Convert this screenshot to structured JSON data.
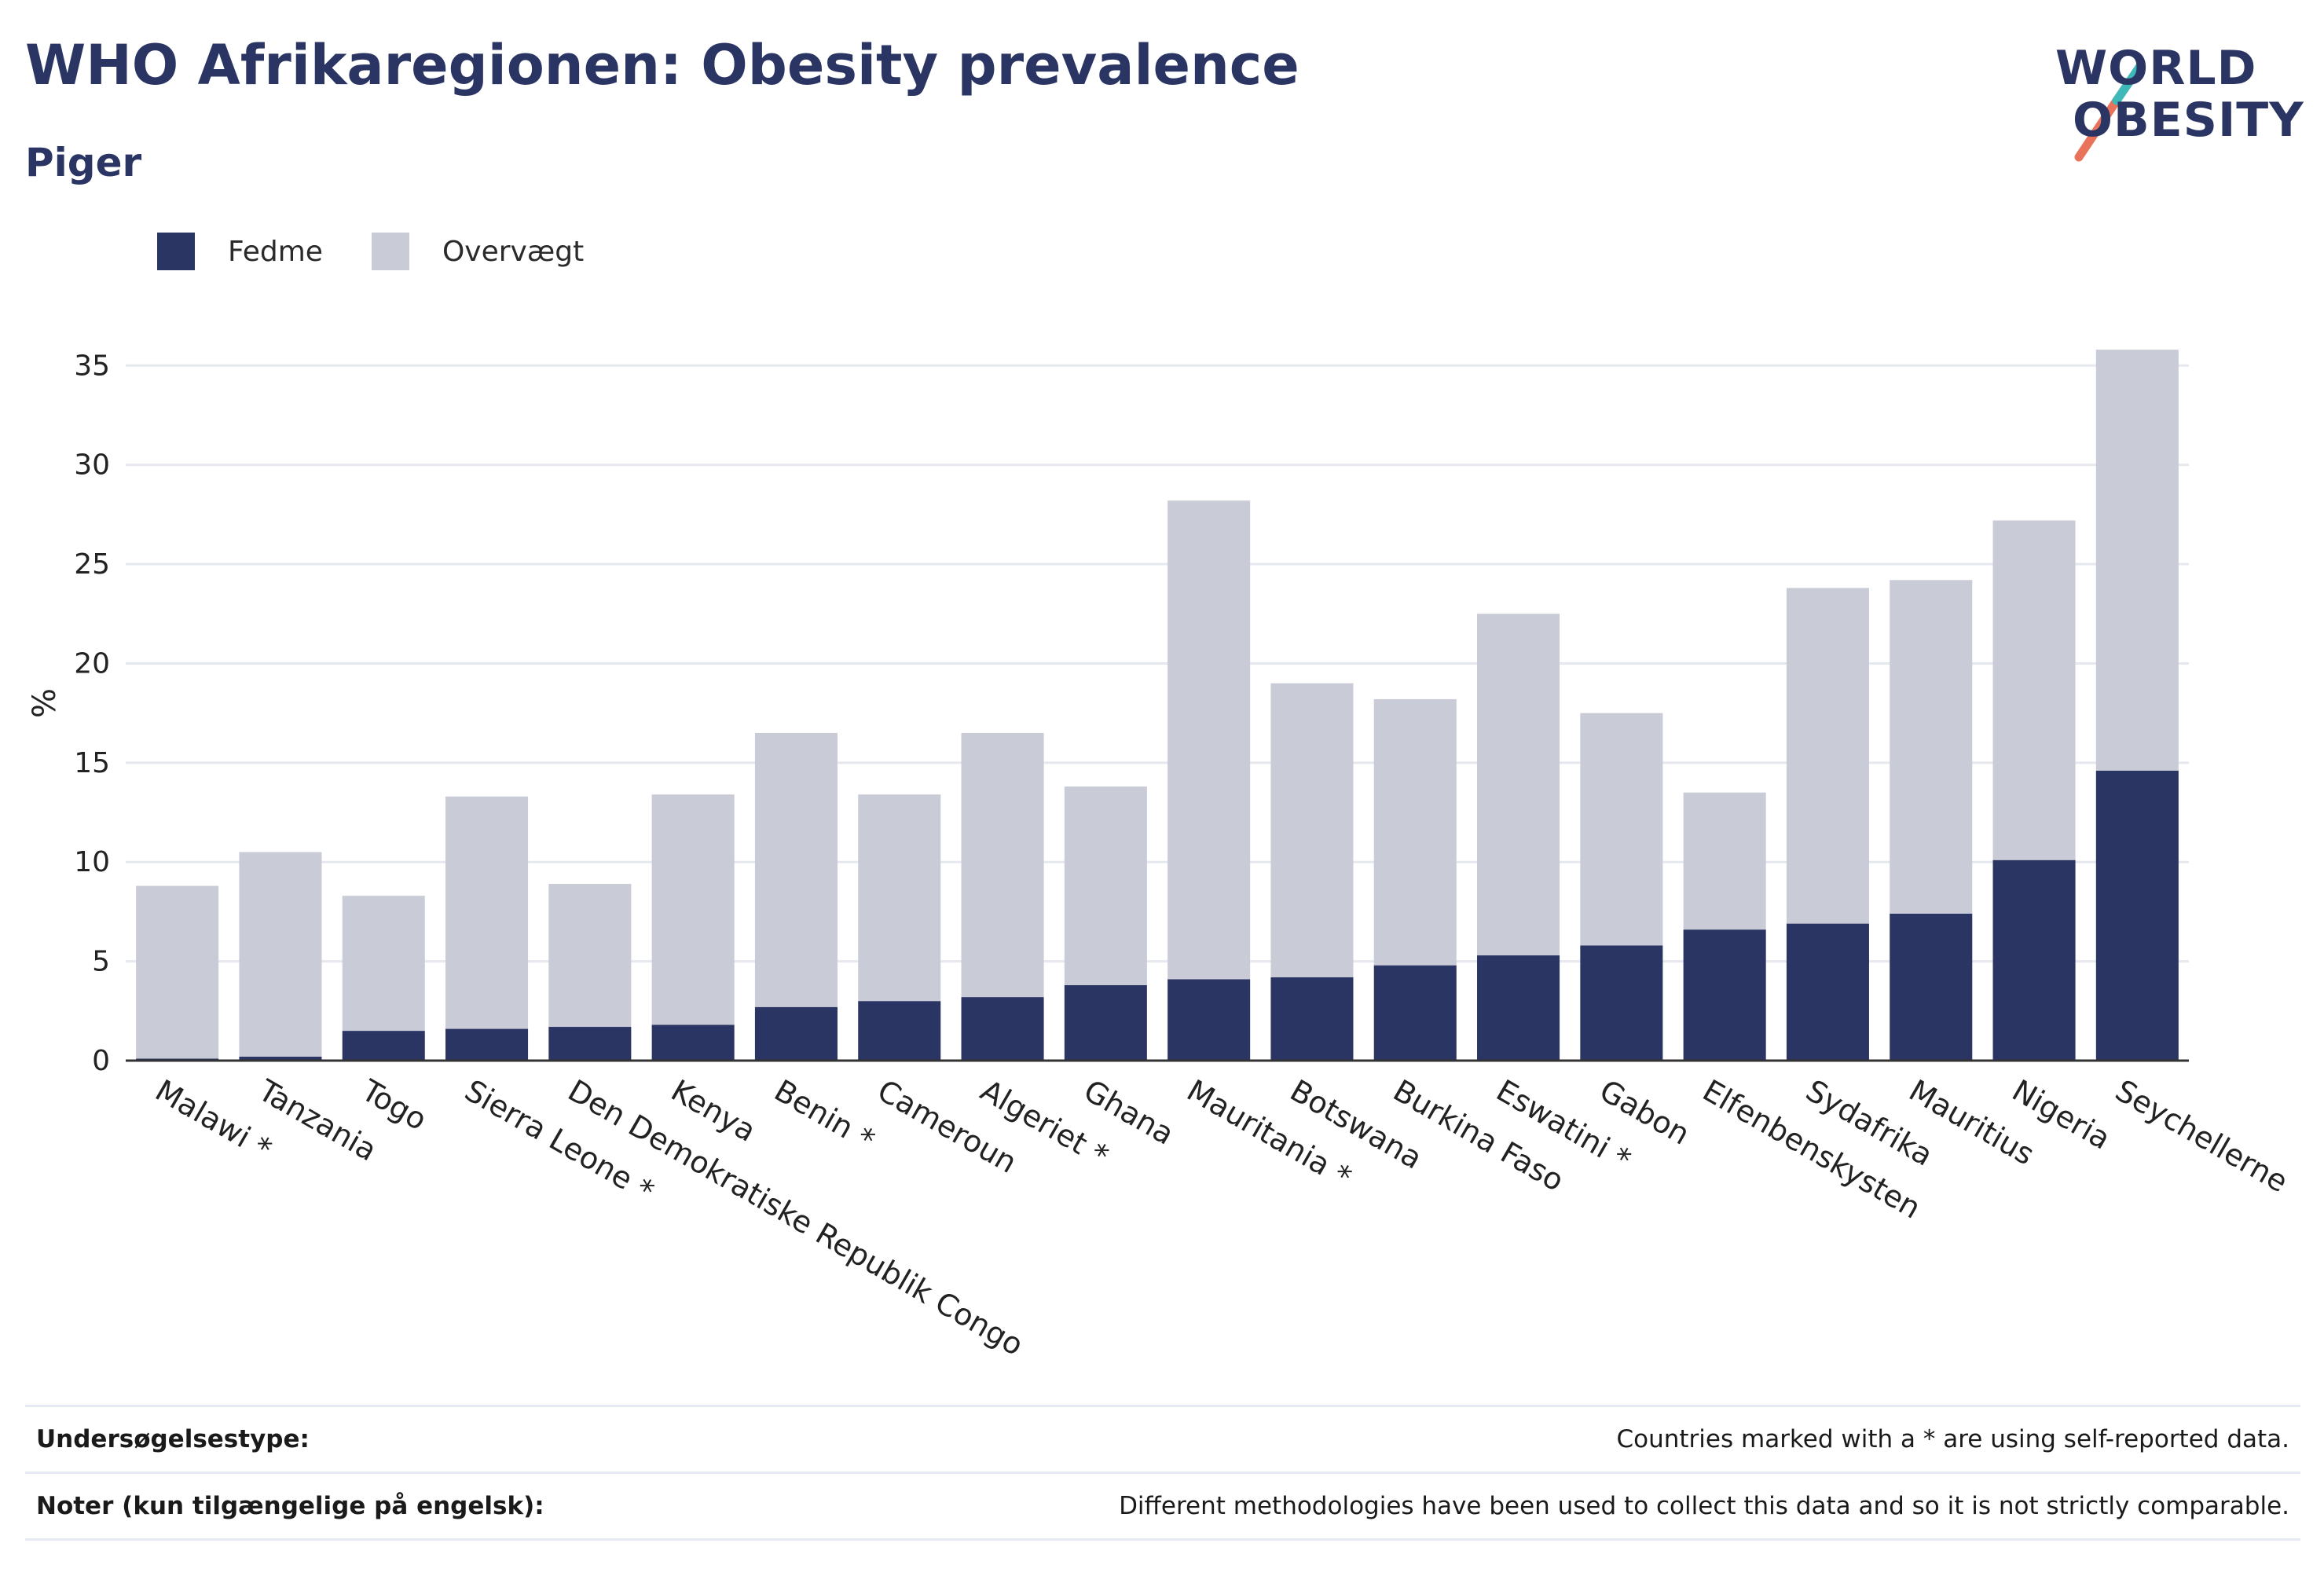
{
  "header": {
    "title": "WHO Afrikaregionen: Obesity prevalence",
    "subtitle": "Piger"
  },
  "logo": {
    "line1": "WORLD",
    "line2": "OBESITY",
    "stripe_colors": [
      "#e8735a",
      "#3fb8b8"
    ]
  },
  "legend": [
    {
      "label": "Fedme",
      "color": "#2b3563"
    },
    {
      "label": "Overvægt",
      "color": "#c9cbd6"
    }
  ],
  "chart_data": {
    "type": "bar",
    "stacked": true,
    "title": "",
    "xlabel": "",
    "ylabel": "%",
    "ylim": [
      0,
      36
    ],
    "yticks": [
      0,
      5,
      10,
      15,
      20,
      25,
      30,
      35
    ],
    "grid": true,
    "legend_position": "top-left",
    "categories": [
      "Malawi *",
      "Tanzania",
      "Togo",
      "Sierra Leone *",
      "Den Demokratiske Republik Congo",
      "Kenya",
      "Benin *",
      "Cameroun",
      "Algeriet *",
      "Ghana",
      "Mauritania *",
      "Botswana",
      "Burkina Faso",
      "Eswatini *",
      "Gabon",
      "Elfenbenskysten",
      "Sydafrika",
      "Mauritius",
      "Nigeria",
      "Seychellerne"
    ],
    "series": [
      {
        "name": "Fedme",
        "color": "#2b3563",
        "values": [
          0.1,
          0.2,
          1.5,
          1.6,
          1.7,
          1.8,
          2.7,
          3.0,
          3.2,
          3.8,
          4.1,
          4.2,
          4.8,
          5.3,
          5.8,
          6.6,
          6.9,
          7.4,
          10.1,
          14.6
        ]
      },
      {
        "name": "Overvægt",
        "color": "#c9cbd6",
        "values": [
          8.7,
          10.3,
          6.8,
          11.7,
          7.2,
          11.6,
          13.8,
          10.4,
          13.3,
          10.0,
          24.1,
          14.8,
          13.4,
          17.2,
          11.7,
          6.9,
          16.9,
          16.8,
          17.1,
          21.2
        ]
      }
    ]
  },
  "footer": {
    "rows": [
      {
        "key": "Undersøgelsestype:",
        "value": "Countries marked with a * are using self-reported data."
      },
      {
        "key": "Noter (kun tilgængelige på engelsk):",
        "value": "Different methodologies have been used to collect this data and so it is not strictly comparable."
      }
    ]
  }
}
